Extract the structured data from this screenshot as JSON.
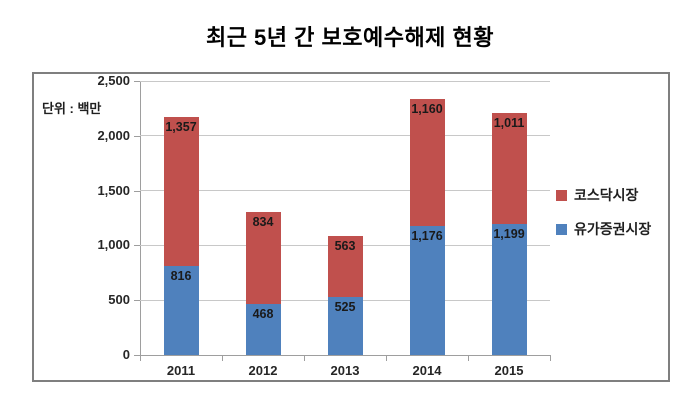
{
  "title": "최근 5년 간 보호예수해제 현황",
  "unit_label": "단위 : 백만",
  "chart_data": {
    "type": "bar",
    "stacked": true,
    "title": "최근 5년 간 보호예수해제 현황",
    "unit": "단위 : 백만",
    "categories": [
      "2011",
      "2012",
      "2013",
      "2014",
      "2015"
    ],
    "series": [
      {
        "name": "유가증권시장",
        "slug": "kospi-market",
        "color": "#4F81BD",
        "values": [
          816,
          468,
          525,
          1176,
          1199
        ]
      },
      {
        "name": "코스닥시장",
        "slug": "kosdaq-market",
        "color": "#C0504D",
        "values": [
          1357,
          834,
          563,
          1160,
          1011
        ]
      }
    ],
    "data_labels": [
      "816",
      "468",
      "525",
      "1,176",
      "1,199",
      "1,357",
      "834",
      "563",
      "1,160",
      "1,011"
    ],
    "ylim": [
      0,
      2500
    ],
    "ytick_step": 500,
    "yticks": [
      "0",
      "500",
      "1,000",
      "1,500",
      "2,000",
      "2,500"
    ],
    "xlabel": "",
    "ylabel": "",
    "grid": true,
    "legend_position": "right",
    "legend": [
      "코스닥시장",
      "유가증권시장"
    ]
  },
  "colors": {
    "kosdaq_red": "#C0504D",
    "kospi_blue": "#4F81BD",
    "gridline": "#C8C8C8",
    "axis": "#9E9E9E",
    "frame_border": "#7F7F7F",
    "text": "#1F1F1F",
    "background": "#FFFFFF"
  }
}
